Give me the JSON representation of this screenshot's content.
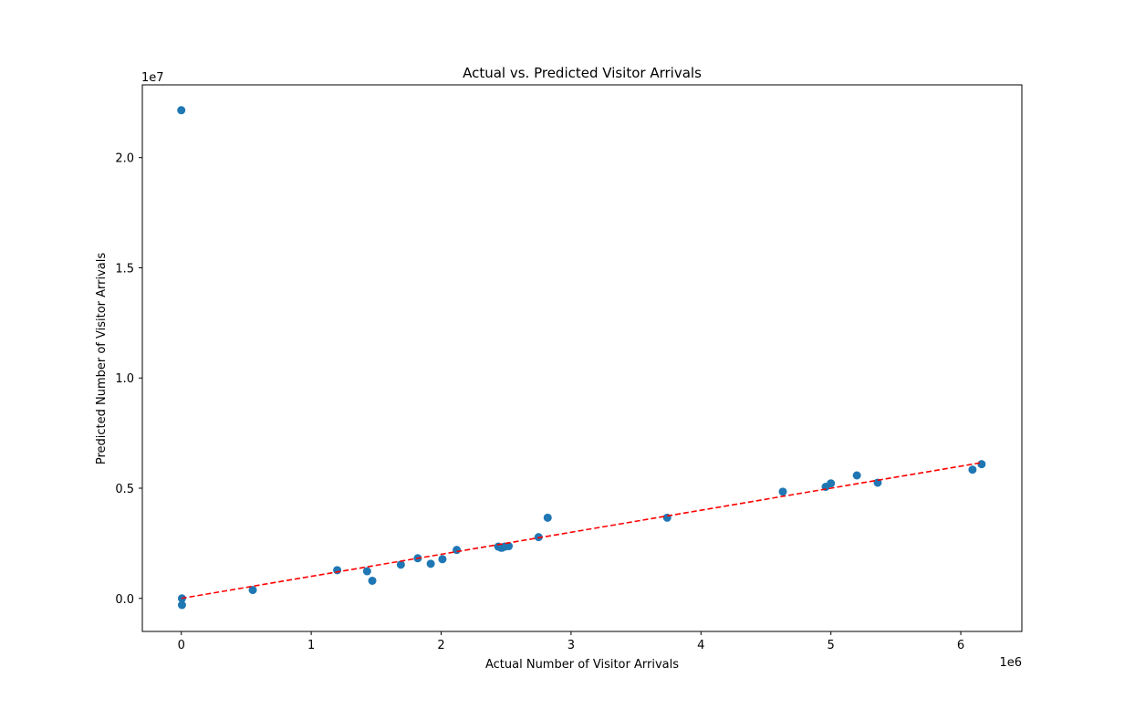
{
  "chart_data": {
    "type": "scatter",
    "title": "Actual vs. Predicted Visitor Arrivals",
    "xlabel": "Actual Number of Visitor Arrivals",
    "ylabel": "Predicted Number of Visitor Arrivals",
    "x_offset_label": "1e6",
    "y_offset_label": "1e7",
    "xlim": [
      -300000,
      6470000
    ],
    "ylim": [
      -1500000,
      23300000
    ],
    "x_ticks": [
      0,
      1000000,
      2000000,
      3000000,
      4000000,
      5000000,
      6000000
    ],
    "x_tick_labels": [
      "0",
      "1",
      "2",
      "3",
      "4",
      "5",
      "6"
    ],
    "y_ticks": [
      0,
      5000000,
      10000000,
      15000000,
      20000000
    ],
    "y_tick_labels": [
      "0.0",
      "0.5",
      "1.0",
      "1.5",
      "2.0"
    ],
    "grid": false,
    "point_color": "#1f77b4",
    "series": [
      {
        "x": [
          0,
          5000,
          5000,
          550000,
          1200000,
          1430000,
          1470000,
          1690000,
          1820000,
          1920000,
          2010000,
          2120000,
          2440000,
          2460000,
          2470000,
          2490000,
          2520000,
          2750000,
          2820000,
          3740000,
          4630000,
          4960000,
          5000000,
          5200000,
          5360000,
          6090000,
          6160000
        ],
        "y": [
          22150000,
          0,
          -300000,
          380000,
          1280000,
          1230000,
          800000,
          1530000,
          1820000,
          1570000,
          1780000,
          2200000,
          2350000,
          2300000,
          2300000,
          2350000,
          2370000,
          2780000,
          3660000,
          3660000,
          4840000,
          5060000,
          5220000,
          5580000,
          5250000,
          5840000,
          6090000
        ]
      }
    ],
    "reference_line": {
      "x": [
        0,
        6160000
      ],
      "y": [
        0,
        6160000
      ],
      "color": "#ff0000",
      "style": "dashed"
    }
  }
}
